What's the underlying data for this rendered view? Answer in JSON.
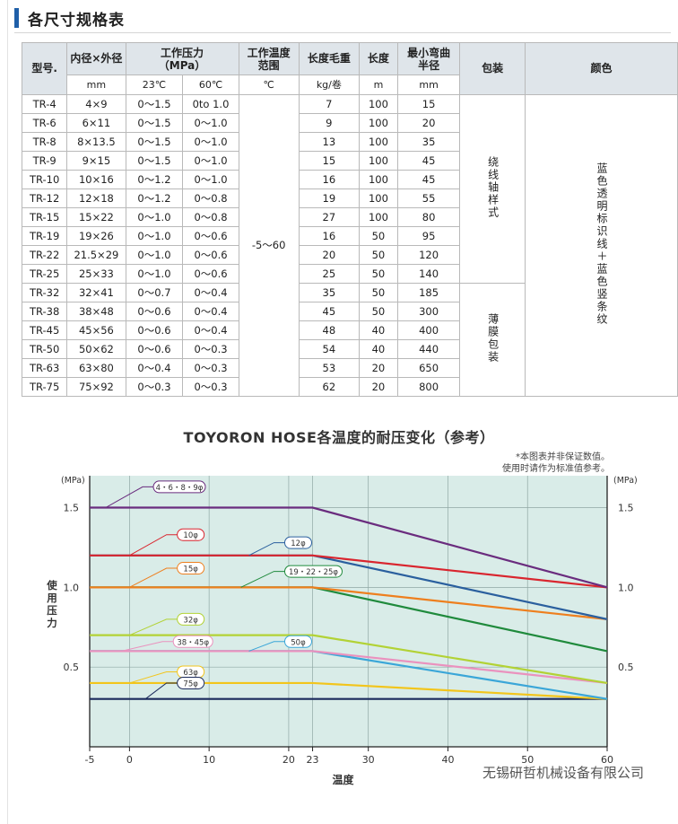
{
  "section": {
    "title": "各尺寸规格表"
  },
  "table": {
    "headers": {
      "model": "型号.",
      "diameter": "内径×外径",
      "pressure": "工作压力\n（MPa）",
      "temp": "工作温度\n范围",
      "weight": "长度毛重",
      "length": "长度",
      "bend": "最小弯曲\n半径",
      "package": "包装",
      "color": "颜色"
    },
    "units": {
      "diameter": "mm",
      "p23": "23℃",
      "p60": "60℃",
      "temp": "℃",
      "weight": "kg/卷",
      "length": "m",
      "bend": "mm"
    },
    "temp_range": "-5～60",
    "package_1": "绕线轴样式",
    "package_2": "薄膜包装",
    "color_text": "蓝色透明标识线＋蓝色竖条纹",
    "rows": [
      {
        "model": "TR-4",
        "size": "4×9",
        "p23": "0～1.5",
        "p60": "0to 1.0",
        "weight": "7",
        "length": "100",
        "bend": "15"
      },
      {
        "model": "TR-6",
        "size": "6×11",
        "p23": "0～1.5",
        "p60": "0～1.0",
        "weight": "9",
        "length": "100",
        "bend": "20"
      },
      {
        "model": "TR-8",
        "size": "8×13.5",
        "p23": "0～1.5",
        "p60": "0～1.0",
        "weight": "13",
        "length": "100",
        "bend": "35"
      },
      {
        "model": "TR-9",
        "size": "9×15",
        "p23": "0～1.5",
        "p60": "0～1.0",
        "weight": "15",
        "length": "100",
        "bend": "45"
      },
      {
        "model": "TR-10",
        "size": "10×16",
        "p23": "0～1.2",
        "p60": "0～1.0",
        "weight": "16",
        "length": "100",
        "bend": "45"
      },
      {
        "model": "TR-12",
        "size": "12×18",
        "p23": "0～1.2",
        "p60": "0～0.8",
        "weight": "19",
        "length": "100",
        "bend": "55"
      },
      {
        "model": "TR-15",
        "size": "15×22",
        "p23": "0～1.0",
        "p60": "0～0.8",
        "weight": "27",
        "length": "100",
        "bend": "80"
      },
      {
        "model": "TR-19",
        "size": "19×26",
        "p23": "0～1.0",
        "p60": "0～0.6",
        "weight": "16",
        "length": "50",
        "bend": "95"
      },
      {
        "model": "TR-22",
        "size": "21.5×29",
        "p23": "0～1.0",
        "p60": "0～0.6",
        "weight": "20",
        "length": "50",
        "bend": "120"
      },
      {
        "model": "TR-25",
        "size": "25×33",
        "p23": "0～1.0",
        "p60": "0～0.6",
        "weight": "25",
        "length": "50",
        "bend": "140"
      },
      {
        "model": "TR-32",
        "size": "32×41",
        "p23": "0～0.7",
        "p60": "0～0.4",
        "weight": "35",
        "length": "50",
        "bend": "185"
      },
      {
        "model": "TR-38",
        "size": "38×48",
        "p23": "0～0.6",
        "p60": "0～0.4",
        "weight": "45",
        "length": "50",
        "bend": "300"
      },
      {
        "model": "TR-45",
        "size": "45×56",
        "p23": "0～0.6",
        "p60": "0～0.4",
        "weight": "48",
        "length": "40",
        "bend": "400"
      },
      {
        "model": "TR-50",
        "size": "50×62",
        "p23": "0～0.6",
        "p60": "0～0.3",
        "weight": "54",
        "length": "40",
        "bend": "440"
      },
      {
        "model": "TR-63",
        "size": "63×80",
        "p23": "0～0.4",
        "p60": "0～0.3",
        "weight": "53",
        "length": "20",
        "bend": "650"
      },
      {
        "model": "TR-75",
        "size": "75×92",
        "p23": "0～0.3",
        "p60": "0～0.3",
        "weight": "62",
        "length": "20",
        "bend": "800"
      }
    ]
  },
  "chart_title": "TOYORON HOSE各温度的耐压变化（参考）",
  "chart_note": [
    "*本图表并非保证数值。",
    "使用时请作为标准值参考。"
  ],
  "watermark": "无锡研哲机械设备有限公司",
  "chart_data": {
    "type": "line",
    "title": "TOYORON HOSE各温度的耐压变化（参考）",
    "xlabel": "温度",
    "ylabel": "使用压力",
    "yunit": "(MPa)",
    "xlim": [
      -5,
      60
    ],
    "ylim": [
      0,
      1.7
    ],
    "xticks": [
      -5,
      0,
      10,
      20,
      23,
      30,
      40,
      50,
      60
    ],
    "yticks": [
      0.5,
      1.0,
      1.5
    ],
    "grid": true,
    "background": "#d9ece8",
    "series": [
      {
        "name": "4・6・8・9φ",
        "color": "#6a2c7e",
        "x": [
          -5,
          23,
          60
        ],
        "y": [
          1.5,
          1.5,
          1.0
        ]
      },
      {
        "name": "10φ",
        "color": "#d9252e",
        "x": [
          -5,
          23,
          60
        ],
        "y": [
          1.2,
          1.2,
          1.0
        ]
      },
      {
        "name": "12φ",
        "color": "#2a5f9e",
        "x": [
          -5,
          23,
          60
        ],
        "y": [
          1.2,
          1.2,
          0.8
        ]
      },
      {
        "name": "15φ",
        "color": "#ee7f1e",
        "x": [
          -5,
          23,
          60
        ],
        "y": [
          1.0,
          1.0,
          0.8
        ]
      },
      {
        "name": "19・22・25φ",
        "color": "#1f8a3c",
        "x": [
          -5,
          23,
          60
        ],
        "y": [
          1.0,
          1.0,
          0.6
        ]
      },
      {
        "name": "32φ",
        "color": "#b2d235",
        "x": [
          -5,
          23,
          60
        ],
        "y": [
          0.7,
          0.7,
          0.4
        ]
      },
      {
        "name": "38・45φ",
        "color": "#ea92be",
        "x": [
          -5,
          23,
          60
        ],
        "y": [
          0.6,
          0.6,
          0.4
        ]
      },
      {
        "name": "50φ",
        "color": "#3aa6d8",
        "x": [
          -5,
          23,
          60
        ],
        "y": [
          0.6,
          0.6,
          0.3
        ]
      },
      {
        "name": "63φ",
        "color": "#f2c51c",
        "x": [
          -5,
          23,
          60
        ],
        "y": [
          0.4,
          0.4,
          0.3
        ]
      },
      {
        "name": "75φ",
        "color": "#1b2a5c",
        "x": [
          -5,
          23,
          60
        ],
        "y": [
          0.3,
          0.3,
          0.3
        ]
      }
    ]
  }
}
